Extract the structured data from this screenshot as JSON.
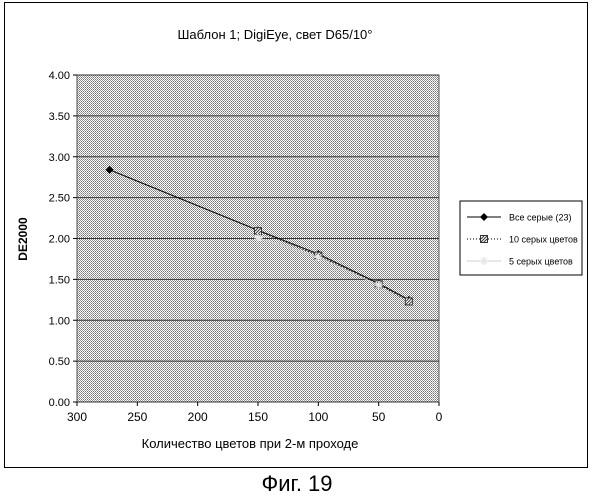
{
  "figure_caption": "Фиг. 19",
  "chart_data": {
    "type": "line",
    "title": "Шаблон 1; DigiEye, свет D65/10°",
    "xlabel": "Количество цветов при 2-м проходе",
    "ylabel": "DE2000",
    "xlim": [
      300,
      0
    ],
    "ylim": [
      0,
      4
    ],
    "x_ticks": [
      "300",
      "250",
      "200",
      "150",
      "100",
      "50",
      "0"
    ],
    "y_ticks": [
      "0.00",
      "0.50",
      "1.00",
      "1.50",
      "2.00",
      "2.50",
      "3.00",
      "3.50",
      "4.00"
    ],
    "x_reversed": true,
    "grid": true,
    "legend_position": "right",
    "series": [
      {
        "name": "Все серые (23)",
        "marker": "diamond",
        "line": "solid",
        "points": [
          [
            273,
            2.84
          ],
          [
            150,
            2.1
          ],
          [
            100,
            1.81
          ],
          [
            50,
            1.45
          ],
          [
            25,
            1.25
          ]
        ]
      },
      {
        "name": "10 серых цветов",
        "marker": "hatched",
        "line": "dotted",
        "points": [
          [
            150,
            2.09
          ],
          [
            100,
            1.79
          ],
          [
            50,
            1.44
          ],
          [
            25,
            1.23
          ]
        ]
      },
      {
        "name": "5 серых цветов",
        "marker": "star",
        "line": "light",
        "points": [
          [
            150,
            2.01
          ],
          [
            100,
            1.77
          ],
          [
            50,
            1.43
          ]
        ]
      }
    ]
  }
}
